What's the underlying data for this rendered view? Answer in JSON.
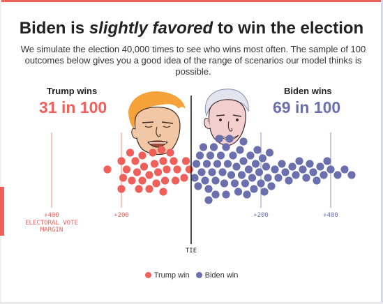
{
  "headline": {
    "prefix": "Biden is ",
    "emphasis": "slightly favored",
    "suffix": " to win the election"
  },
  "subtitle": "We simulate the election 40,000 times to see who wins most often. The sample of 100 outcomes below gives you a good idea of the range of scenarios our model thinks is possible.",
  "trump": {
    "label": "Trump wins",
    "count_text": "31 in 100",
    "portrait": "trump-caricature"
  },
  "biden": {
    "label": "Biden wins",
    "count_text": "69 in 100",
    "portrait": "biden-caricature"
  },
  "tie_label": "TIE",
  "axis_label": "ELECTORAL VOTE MARGIN",
  "colors": {
    "trump": "#f0605a",
    "biden": "#6b6fad",
    "tie_line": "#222222"
  },
  "legend": [
    {
      "label": "Trump win",
      "color": "#f0605a"
    },
    {
      "label": "Biden win",
      "color": "#6b6fad"
    }
  ],
  "chart_data": {
    "type": "scatter",
    "description_type": "beeswarm",
    "x_unit": "electoral vote margin",
    "ticks": [
      {
        "value": -400,
        "label": "+400",
        "side": "trump"
      },
      {
        "value": -200,
        "label": "+200",
        "side": "trump"
      },
      {
        "value": 200,
        "label": "+200",
        "side": "biden"
      },
      {
        "value": 400,
        "label": "+400",
        "side": "biden"
      }
    ],
    "series": [
      {
        "name": "Trump win",
        "count": 31,
        "margins": [
          -240,
          -200,
          -200,
          -195,
          -185,
          -175,
          -170,
          -160,
          -155,
          -150,
          -140,
          -140,
          -135,
          -120,
          -120,
          -110,
          -105,
          -100,
          -95,
          -85,
          -80,
          -80,
          -75,
          -70,
          -60,
          -50,
          -45,
          -40,
          -20,
          -15,
          -5
        ]
      },
      {
        "name": "Biden win",
        "count": 69,
        "margins": [
          10,
          15,
          20,
          25,
          30,
          35,
          40,
          45,
          50,
          50,
          55,
          60,
          65,
          70,
          70,
          75,
          80,
          85,
          90,
          95,
          100,
          100,
          105,
          110,
          115,
          120,
          125,
          130,
          135,
          140,
          145,
          150,
          150,
          155,
          160,
          165,
          170,
          175,
          180,
          185,
          190,
          195,
          200,
          205,
          210,
          215,
          220,
          225,
          230,
          240,
          250,
          260,
          270,
          280,
          290,
          300,
          310,
          320,
          330,
          340,
          350,
          360,
          370,
          380,
          390,
          400,
          420,
          440,
          460
        ]
      }
    ]
  }
}
